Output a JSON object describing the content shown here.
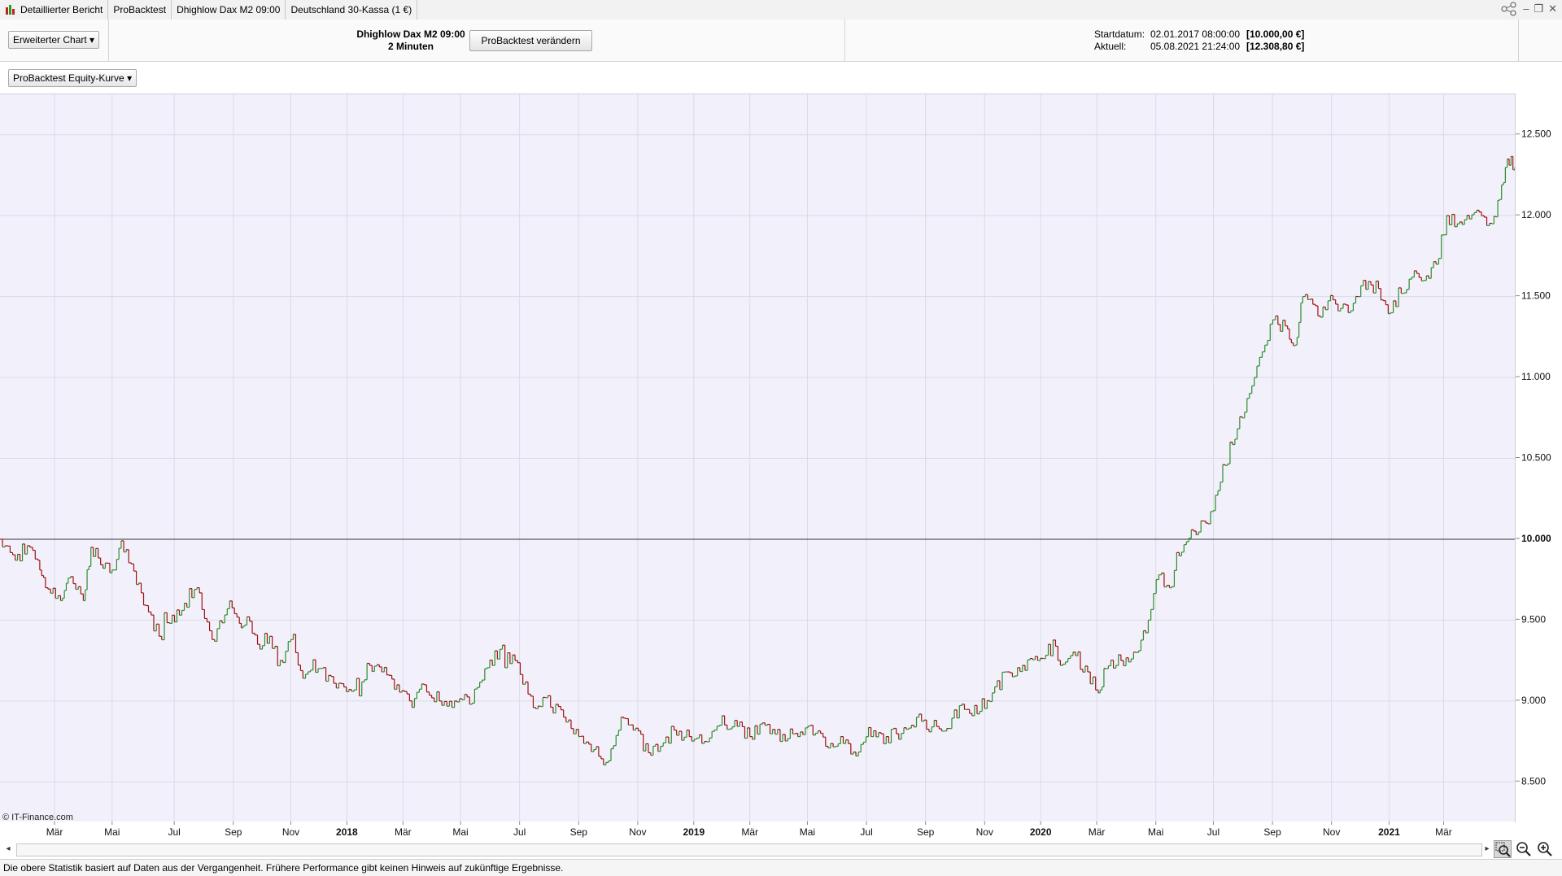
{
  "tabs": [
    {
      "label": "Detaillierter Bericht"
    },
    {
      "label": "ProBacktest"
    },
    {
      "label": "Dhighlow Dax M2 09:00"
    },
    {
      "label": "Deutschland 30-Kassa (1 €)"
    }
  ],
  "toolbar": {
    "chart_mode_label": "Erweiterter Chart",
    "strategy_name": "Dhighlow Dax M2 09:00",
    "timeframe": "2 Minuten",
    "modify_button": "ProBacktest verändern",
    "start_label": "Startdatum:",
    "start_date": "02.01.2017 08:00:00",
    "start_value": "[10.000,00 €]",
    "current_label": "Aktuell:",
    "current_date": "05.08.2021 21:24:00",
    "current_value": "[12.308,80 €]"
  },
  "equity_selector": {
    "label": "ProBacktest Equity-Kurve"
  },
  "chart_data": {
    "type": "line",
    "y_ticks": [
      "12.500",
      "12.000",
      "11.500",
      "11.000",
      "10.500",
      "10.000",
      "9.500",
      "9.000",
      "8.500"
    ],
    "y_tick_values": [
      12500,
      12000,
      11500,
      11000,
      10500,
      10000,
      9500,
      9000,
      8500
    ],
    "ylim": [
      8250,
      12750
    ],
    "reference_line": {
      "value": 10000,
      "label": "10.000"
    },
    "x_ticks": [
      {
        "label": "Mär",
        "t": 0.036,
        "bold": false
      },
      {
        "label": "Mai",
        "t": 0.074,
        "bold": false
      },
      {
        "label": "Jul",
        "t": 0.115,
        "bold": false
      },
      {
        "label": "Sep",
        "t": 0.154,
        "bold": false
      },
      {
        "label": "Nov",
        "t": 0.192,
        "bold": false
      },
      {
        "label": "2018",
        "t": 0.229,
        "bold": true
      },
      {
        "label": "Mär",
        "t": 0.266,
        "bold": false
      },
      {
        "label": "Mai",
        "t": 0.304,
        "bold": false
      },
      {
        "label": "Jul",
        "t": 0.343,
        "bold": false
      },
      {
        "label": "Sep",
        "t": 0.382,
        "bold": false
      },
      {
        "label": "Nov",
        "t": 0.421,
        "bold": false
      },
      {
        "label": "2019",
        "t": 0.458,
        "bold": true
      },
      {
        "label": "Mär",
        "t": 0.495,
        "bold": false
      },
      {
        "label": "Mai",
        "t": 0.533,
        "bold": false
      },
      {
        "label": "Jul",
        "t": 0.572,
        "bold": false
      },
      {
        "label": "Sep",
        "t": 0.611,
        "bold": false
      },
      {
        "label": "Nov",
        "t": 0.65,
        "bold": false
      },
      {
        "label": "2020",
        "t": 0.687,
        "bold": true
      },
      {
        "label": "Mär",
        "t": 0.724,
        "bold": false
      },
      {
        "label": "Mai",
        "t": 0.763,
        "bold": false
      },
      {
        "label": "Jul",
        "t": 0.801,
        "bold": false
      },
      {
        "label": "Sep",
        "t": 0.84,
        "bold": false
      },
      {
        "label": "Nov",
        "t": 0.879,
        "bold": false
      },
      {
        "label": "2021",
        "t": 0.917,
        "bold": true
      },
      {
        "label": "Mär",
        "t": 0.953,
        "bold": false
      }
    ],
    "series": [
      {
        "color_down": "#a01010",
        "color_up": "#2e8b2e",
        "t": [
          0.0,
          0.01,
          0.018,
          0.025,
          0.03,
          0.04,
          0.045,
          0.055,
          0.06,
          0.068,
          0.074,
          0.08,
          0.09,
          0.098,
          0.105,
          0.112,
          0.12,
          0.13,
          0.14,
          0.15,
          0.158,
          0.163,
          0.17,
          0.178,
          0.185,
          0.192,
          0.2,
          0.21,
          0.222,
          0.232,
          0.244,
          0.252,
          0.262,
          0.272,
          0.28,
          0.29,
          0.3,
          0.31,
          0.32,
          0.33,
          0.34,
          0.352,
          0.36,
          0.372,
          0.382,
          0.392,
          0.4,
          0.41,
          0.418,
          0.428,
          0.436,
          0.445,
          0.455,
          0.465,
          0.475,
          0.485,
          0.495,
          0.505,
          0.515,
          0.525,
          0.535,
          0.545,
          0.555,
          0.565,
          0.575,
          0.585,
          0.595,
          0.605,
          0.615,
          0.625,
          0.635,
          0.645,
          0.655,
          0.665,
          0.675,
          0.685,
          0.692,
          0.7,
          0.71,
          0.718,
          0.725,
          0.73,
          0.74,
          0.75,
          0.758,
          0.765,
          0.772,
          0.78,
          0.788,
          0.796,
          0.804,
          0.812,
          0.82,
          0.828,
          0.835,
          0.842,
          0.85,
          0.855,
          0.86,
          0.87,
          0.88,
          0.89,
          0.9,
          0.91,
          0.918,
          0.925,
          0.932,
          0.94,
          0.948,
          0.955,
          0.962,
          0.97,
          0.978,
          0.985,
          0.99,
          0.995,
          1.0
        ],
        "values": [
          10000,
          9870,
          9960,
          9870,
          9700,
          9620,
          9760,
          9620,
          9950,
          9820,
          9810,
          9990,
          9720,
          9550,
          9400,
          9480,
          9560,
          9700,
          9380,
          9570,
          9480,
          9520,
          9350,
          9400,
          9250,
          9380,
          9140,
          9200,
          9080,
          9060,
          9220,
          9180,
          9100,
          8960,
          9100,
          9000,
          9000,
          8980,
          9200,
          9320,
          9250,
          8960,
          9020,
          8900,
          8780,
          8700,
          8620,
          8900,
          8820,
          8680,
          8720,
          8820,
          8780,
          8750,
          8850,
          8880,
          8780,
          8850,
          8750,
          8800,
          8850,
          8720,
          8780,
          8660,
          8780,
          8780,
          8800,
          8900,
          8840,
          8830,
          8980,
          8920,
          9050,
          9180,
          9220,
          9250,
          9350,
          9220,
          9280,
          9180,
          9050,
          9200,
          9250,
          9300,
          9500,
          9780,
          9700,
          9920,
          10050,
          10100,
          10300,
          10600,
          10750,
          11000,
          11200,
          11380,
          11300,
          11200,
          11500,
          11380,
          11480,
          11400,
          11600,
          11550,
          11400,
          11520,
          11620,
          11600,
          11700,
          12000,
          11950,
          11980,
          12000,
          11950,
          12100,
          12350,
          12300
        ]
      }
    ]
  },
  "watermark": "© IT-Finance.com",
  "footer": {
    "disclaimer": "Die obere Statistik basiert auf Daten aus der Vergangenheit. Frühere Performance gibt keinen Hinweis auf zukünftige Ergebnisse."
  },
  "icons": {
    "tab": "chart-candles-icon",
    "zoom_select": "zoom-select-icon",
    "zoom_out": "zoom-out-icon",
    "zoom_in": "zoom-in-icon"
  }
}
